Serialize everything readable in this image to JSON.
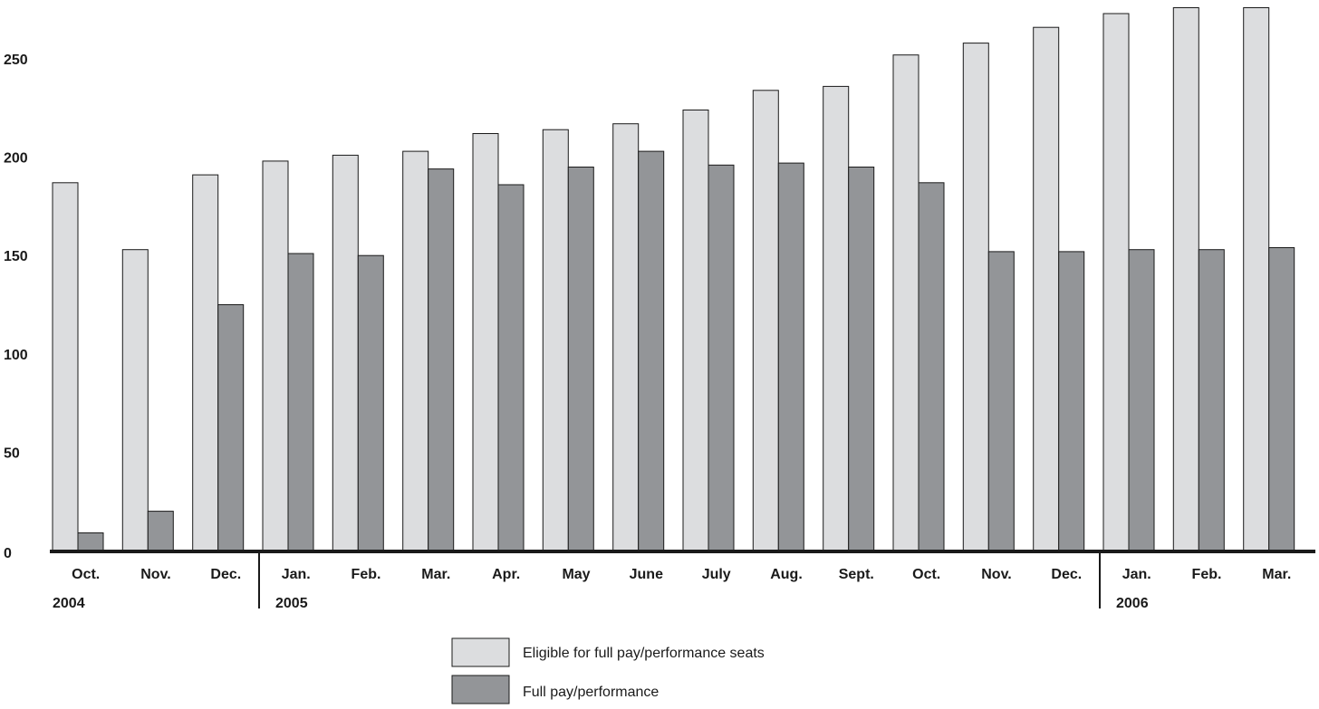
{
  "chart_data": {
    "type": "bar",
    "categories": [
      "Oct.",
      "Nov.",
      "Dec.",
      "Jan.",
      "Feb.",
      "Mar.",
      "Apr.",
      "May",
      "June",
      "July",
      "Aug.",
      "Sept.",
      "Oct.",
      "Nov.",
      "Dec.",
      "Jan.",
      "Feb.",
      "Mar."
    ],
    "years": [
      {
        "label": "2004",
        "start_index": 0
      },
      {
        "label": "2005",
        "start_index": 3
      },
      {
        "label": "2006",
        "start_index": 15
      }
    ],
    "series": [
      {
        "name": "Eligible for full pay/performance seats",
        "color": "#dcdddf",
        "values": [
          187,
          153,
          191,
          198,
          201,
          203,
          212,
          214,
          217,
          224,
          234,
          236,
          252,
          258,
          266,
          273,
          276,
          276
        ]
      },
      {
        "name": "Full pay/performance",
        "color": "#939598",
        "values": [
          9,
          20,
          125,
          151,
          150,
          194,
          186,
          195,
          203,
          196,
          197,
          195,
          187,
          152,
          152,
          153,
          153,
          154
        ]
      }
    ],
    "yticks": [
      0,
      50,
      100,
      150,
      200,
      250
    ],
    "ylim": [
      0,
      276
    ],
    "grid": false,
    "legend_position": "bottom-center"
  }
}
